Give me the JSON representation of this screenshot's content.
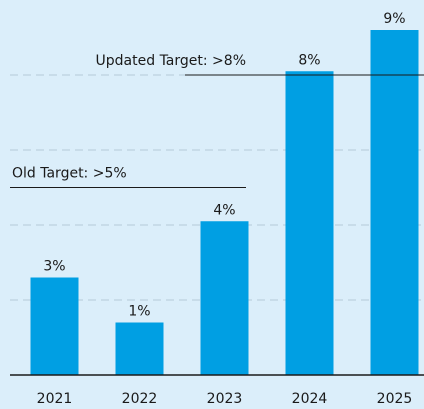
{
  "chart_data": {
    "type": "bar",
    "categories": [
      "2021",
      "2022",
      "2023",
      "2024",
      "2025"
    ],
    "values": [
      2.6,
      1.4,
      4.1,
      8.1,
      9.2
    ],
    "value_labels": [
      "3%",
      "1%",
      "4%",
      "8%",
      "9%"
    ],
    "color": "#009fe3",
    "ylim": [
      0,
      10
    ],
    "yticks": [
      2,
      4,
      6,
      8
    ],
    "grid": true,
    "annotations": [
      {
        "text": "Old Target: >5%",
        "value": 5
      },
      {
        "text": "Updated Target: >8%",
        "value": 8
      }
    ]
  }
}
